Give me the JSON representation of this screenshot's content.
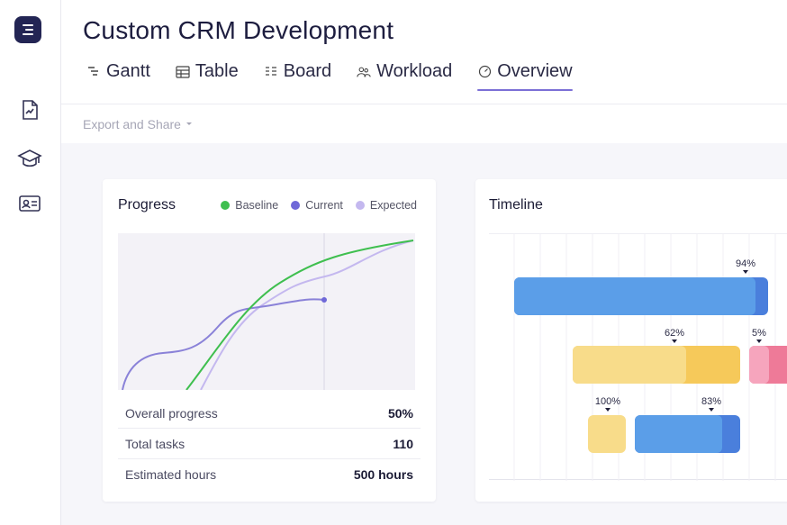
{
  "project": {
    "title": "Custom CRM Development"
  },
  "tabs": [
    {
      "label": "Gantt",
      "icon": "gantt-icon",
      "active": false
    },
    {
      "label": "Table",
      "icon": "table-icon",
      "active": false
    },
    {
      "label": "Board",
      "icon": "board-icon",
      "active": false
    },
    {
      "label": "Workload",
      "icon": "workload-icon",
      "active": false
    },
    {
      "label": "Overview",
      "icon": "overview-icon",
      "active": true
    }
  ],
  "toolbar": {
    "export_label": "Export and Share"
  },
  "sidebar": {
    "icons": [
      "document-icon",
      "graduation-cap-icon",
      "contact-card-icon"
    ]
  },
  "progress": {
    "title": "Progress",
    "legend": [
      {
        "label": "Baseline",
        "color": "#3fbf4f"
      },
      {
        "label": "Current",
        "color": "#6f68d8"
      },
      {
        "label": "Expected",
        "color": "#c4b8ef"
      }
    ],
    "stats": [
      {
        "label": "Overall progress",
        "value": "50%"
      },
      {
        "label": "Total tasks",
        "value": "110"
      },
      {
        "label": "Estimated hours",
        "value": "500 hours"
      }
    ]
  },
  "timeline": {
    "title": "Timeline",
    "labels": [
      "94%",
      "62%",
      "5%",
      "100%",
      "83%"
    ]
  },
  "colors": {
    "accent": "#7b6fd6",
    "blue_bar": "#5b9ee8",
    "blue_bar_dark": "#4a7fdc",
    "yellow_bar": "#f8dc8a",
    "yellow_bar_dark": "#f6c95a",
    "pink_bar": "#f08aa8"
  }
}
